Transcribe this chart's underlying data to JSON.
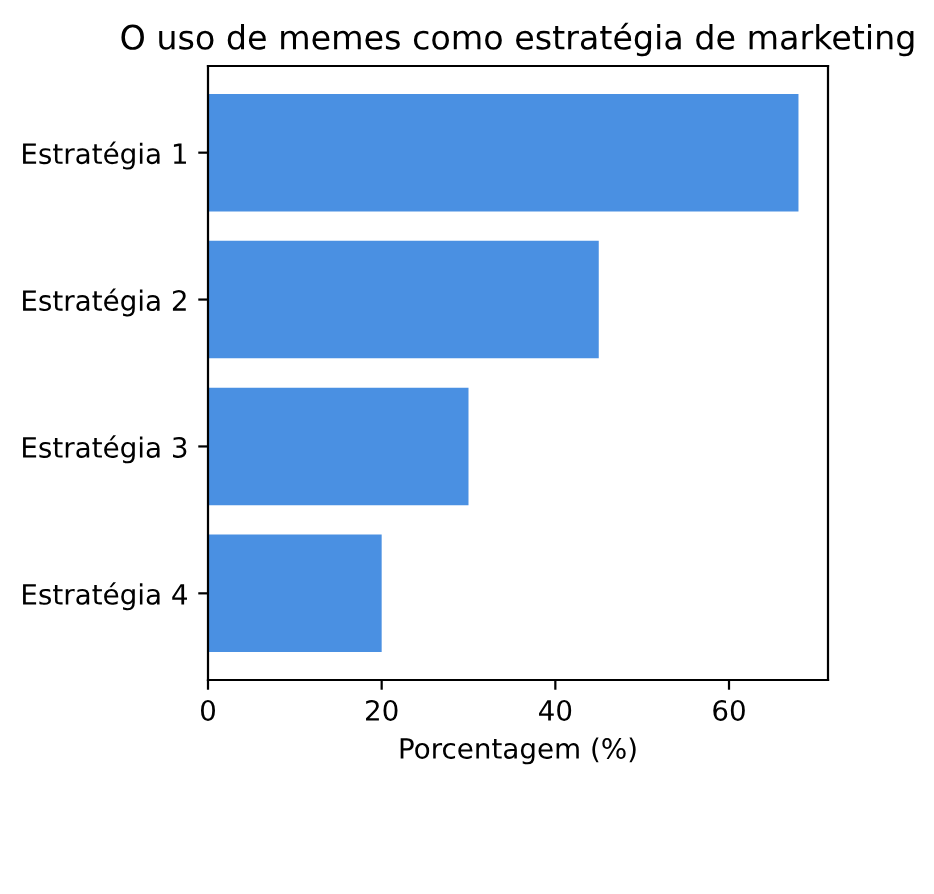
{
  "chart_data": {
    "type": "bar",
    "orientation": "horizontal",
    "title": "O uso de memes como estratégia de marketing",
    "xlabel": "Porcentagem (%)",
    "categories": [
      "Estratégia 1",
      "Estratégia 2",
      "Estratégia 3",
      "Estratégia 4"
    ],
    "values": [
      68,
      45,
      30,
      20
    ],
    "color": "#4a90e2",
    "xlim": [
      0,
      71.4
    ],
    "xticks": [
      0,
      20,
      40,
      60
    ],
    "grid": false
  }
}
